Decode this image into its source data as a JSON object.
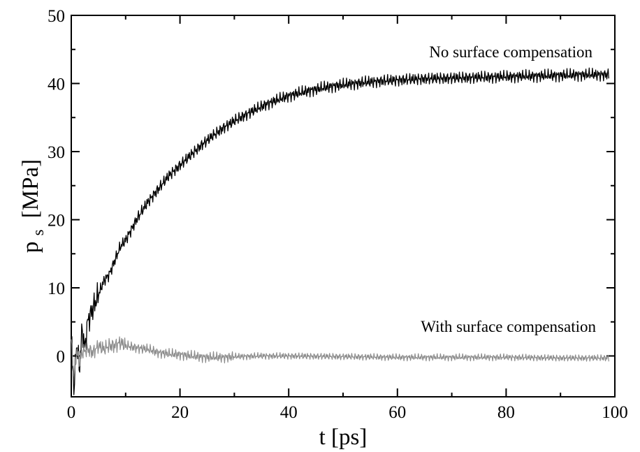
{
  "chart_data": {
    "type": "line",
    "title": "",
    "xlabel": "t [ps]",
    "ylabel_main": "p",
    "ylabel_sub": "s",
    "ylabel_unit": "[MPa]",
    "xlim": [
      0,
      100
    ],
    "ylim": [
      -6,
      50
    ],
    "xticks": [
      0,
      20,
      40,
      60,
      80,
      100
    ],
    "yticks": [
      0,
      10,
      20,
      30,
      40,
      50
    ],
    "grid": false,
    "legend": "none",
    "annotations": [
      {
        "text": "No surface compensation",
        "series": 0
      },
      {
        "text": "With surface compensation",
        "series": 1
      }
    ],
    "series": [
      {
        "color": "#000000",
        "x": [
          0,
          0.5,
          1,
          1.5,
          2,
          2.5,
          3,
          4,
          5,
          6,
          7,
          8,
          9,
          10,
          12,
          14,
          16,
          18,
          20,
          22,
          24,
          26,
          28,
          30,
          33,
          36,
          40,
          44,
          48,
          52,
          56,
          60,
          65,
          70,
          75,
          80,
          85,
          90,
          95,
          99
        ],
        "y": [
          3,
          -5,
          2,
          -2,
          4,
          1,
          5,
          7,
          9,
          11,
          12,
          14,
          16,
          17,
          20,
          22.5,
          24.5,
          26.5,
          28,
          29.5,
          31,
          32.3,
          33.5,
          34.5,
          35.8,
          37,
          38.2,
          39,
          39.6,
          40,
          40.3,
          40.5,
          40.7,
          40.8,
          40.9,
          41,
          41.1,
          41.2,
          41.3,
          41.3
        ]
      },
      {
        "color": "#8c8c8c",
        "x": [
          0,
          0.5,
          1,
          1.5,
          2,
          3,
          4,
          5,
          6,
          7,
          8,
          9,
          10,
          12,
          14,
          16,
          18,
          20,
          22,
          25,
          28,
          30,
          35,
          40,
          50,
          60,
          70,
          80,
          90,
          99
        ],
        "y": [
          2,
          -3,
          1,
          -1,
          0.5,
          1,
          0.5,
          1.5,
          1,
          1.5,
          1.5,
          2,
          1.5,
          1.2,
          1,
          0.5,
          0.3,
          0.2,
          0,
          -0.2,
          -0.2,
          -0.1,
          0,
          0,
          -0.1,
          -0.2,
          -0.2,
          -0.2,
          -0.3,
          -0.3
        ]
      }
    ]
  }
}
